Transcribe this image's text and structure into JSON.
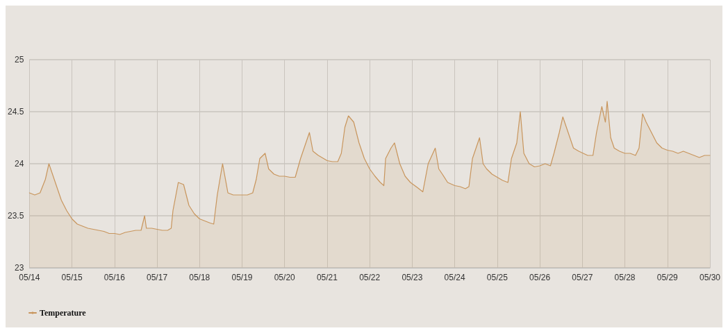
{
  "chart_data": {
    "type": "area",
    "legend": "bottom left",
    "grid": true,
    "marker": "none",
    "line_style": "solid",
    "ylim": [
      23,
      25
    ],
    "yticks": [
      23,
      23.5,
      24,
      24.5,
      25
    ],
    "xlim": [
      "--05-14",
      "--05-30"
    ],
    "xticks": [
      {
        "value": "--05-14",
        "label": "05/14"
      },
      {
        "value": "--05-15",
        "label": "05/15"
      },
      {
        "value": "--05-16",
        "label": "05/16"
      },
      {
        "value": "--05-17",
        "label": "05/17"
      },
      {
        "value": "--05-18",
        "label": "05/18"
      },
      {
        "value": "--05-19",
        "label": "05/19"
      },
      {
        "value": "--05-20",
        "label": "05/20"
      },
      {
        "value": "--05-21",
        "label": "05/21"
      },
      {
        "value": "--05-22",
        "label": "05/22"
      },
      {
        "value": "--05-23",
        "label": "05/23"
      },
      {
        "value": "--05-24",
        "label": "05/24"
      },
      {
        "value": "--05-25",
        "label": "05/25"
      },
      {
        "value": "--05-26",
        "label": "05/26"
      },
      {
        "value": "--05-27",
        "label": "05/27"
      },
      {
        "value": "--05-28",
        "label": "05/28"
      },
      {
        "value": "--05-29",
        "label": "05/29"
      },
      {
        "value": "--05-30",
        "label": "05/30"
      }
    ],
    "x": [
      "--05-14T00:00",
      "--05-14T03:00",
      "--05-14T06:00",
      "--05-14T09:00",
      "--05-14T11:00",
      "--05-14T12:00",
      "--05-14T15:00",
      "--05-14T18:00",
      "--05-14T21:00",
      "--05-15T00:00",
      "--05-15T03:00",
      "--05-15T06:00",
      "--05-15T09:00",
      "--05-15T12:00",
      "--05-15T15:00",
      "--05-15T18:00",
      "--05-15T21:00",
      "--05-16T00:00",
      "--05-16T03:00",
      "--05-16T06:00",
      "--05-16T09:00",
      "--05-16T12:00",
      "--05-16T15:00",
      "--05-16T17:00",
      "--05-16T18:00",
      "--05-16T21:00",
      "--05-17T00:00",
      "--05-17T03:00",
      "--05-17T06:00",
      "--05-17T08:00",
      "--05-17T09:00",
      "--05-17T12:00",
      "--05-17T15:00",
      "--05-17T18:00",
      "--05-17T21:00",
      "--05-18T00:00",
      "--05-18T03:00",
      "--05-18T06:00",
      "--05-18T08:00",
      "--05-18T10:00",
      "--05-18T13:00",
      "--05-18T16:00",
      "--05-18T19:00",
      "--05-18T22:00",
      "--05-19T00:00",
      "--05-19T03:00",
      "--05-19T06:00",
      "--05-19T08:00",
      "--05-19T10:00",
      "--05-19T13:00",
      "--05-19T15:00",
      "--05-19T18:00",
      "--05-19T21:00",
      "--05-20T00:00",
      "--05-20T03:00",
      "--05-20T06:00",
      "--05-20T09:00",
      "--05-20T12:00",
      "--05-20T14:00",
      "--05-20T16:00",
      "--05-20T19:00",
      "--05-20T22:00",
      "--05-21T00:00",
      "--05-21T03:00",
      "--05-21T06:00",
      "--05-21T08:00",
      "--05-21T10:00",
      "--05-21T12:00",
      "--05-21T15:00",
      "--05-21T18:00",
      "--05-21T21:00",
      "--05-22T00:00",
      "--05-22T03:00",
      "--05-22T06:00",
      "--05-22T08:00",
      "--05-22T09:00",
      "--05-22T12:00",
      "--05-22T14:00",
      "--05-22T17:00",
      "--05-22T20:00",
      "--05-22T23:00",
      "--05-23T03:00",
      "--05-23T06:00",
      "--05-23T09:00",
      "--05-23T13:00",
      "--05-23T15:00",
      "--05-23T17:00",
      "--05-23T20:00",
      "--05-24T00:00",
      "--05-24T03:00",
      "--05-24T06:00",
      "--05-24T08:00",
      "--05-24T10:00",
      "--05-24T14:00",
      "--05-24T16:00",
      "--05-24T18:00",
      "--05-24T21:00",
      "--05-25T00:00",
      "--05-25T03:00",
      "--05-25T06:00",
      "--05-25T08:00",
      "--05-25T11:00",
      "--05-25T13:00",
      "--05-25T15:00",
      "--05-25T18:00",
      "--05-25T21:00",
      "--05-26T00:00",
      "--05-26T03:00",
      "--05-26T06:00",
      "--05-26T08:00",
      "--05-26T11:00",
      "--05-26T13:00",
      "--05-26T16:00",
      "--05-26T19:00",
      "--05-26T22:00",
      "--05-27T03:00",
      "--05-27T06:00",
      "--05-27T08:00",
      "--05-27T11:00",
      "--05-27T13:00",
      "--05-27T14:00",
      "--05-27T16:00",
      "--05-27T18:00",
      "--05-27T21:00",
      "--05-28T00:00",
      "--05-28T03:00",
      "--05-28T06:00",
      "--05-28T08:00",
      "--05-28T10:00",
      "--05-28T12:00",
      "--05-28T15:00",
      "--05-28T18:00",
      "--05-28T21:00",
      "--05-29T00:00",
      "--05-29T03:00",
      "--05-29T06:00",
      "--05-29T09:00",
      "--05-29T12:00",
      "--05-29T15:00",
      "--05-29T18:00",
      "--05-29T21:00",
      "--05-30T00:00"
    ],
    "series": [
      {
        "name": "Temperature",
        "color": "#c8955c",
        "values": [
          23.72,
          23.7,
          23.72,
          23.85,
          24.0,
          23.95,
          23.8,
          23.65,
          23.55,
          23.47,
          23.42,
          23.4,
          23.38,
          23.37,
          23.36,
          23.35,
          23.33,
          23.33,
          23.32,
          23.34,
          23.35,
          23.36,
          23.36,
          23.5,
          23.38,
          23.38,
          23.37,
          23.36,
          23.36,
          23.38,
          23.55,
          23.82,
          23.8,
          23.6,
          23.52,
          23.47,
          23.45,
          23.43,
          23.42,
          23.7,
          24.0,
          23.72,
          23.7,
          23.7,
          23.7,
          23.7,
          23.72,
          23.85,
          24.05,
          24.1,
          23.95,
          23.9,
          23.88,
          23.88,
          23.87,
          23.87,
          24.05,
          24.2,
          24.3,
          24.12,
          24.08,
          24.05,
          24.03,
          24.02,
          24.02,
          24.1,
          24.35,
          24.46,
          24.4,
          24.2,
          24.05,
          23.95,
          23.88,
          23.82,
          23.79,
          24.05,
          24.15,
          24.2,
          24.0,
          23.88,
          23.82,
          23.77,
          23.73,
          24.0,
          24.15,
          23.95,
          23.9,
          23.82,
          23.79,
          23.78,
          23.76,
          23.78,
          24.05,
          24.25,
          24.0,
          23.95,
          23.9,
          23.87,
          23.84,
          23.82,
          24.05,
          24.2,
          24.5,
          24.1,
          24.0,
          23.97,
          23.98,
          24.0,
          23.98,
          24.1,
          24.3,
          24.45,
          24.3,
          24.15,
          24.12,
          24.08,
          24.08,
          24.3,
          24.55,
          24.4,
          24.6,
          24.25,
          24.15,
          24.12,
          24.1,
          24.1,
          24.08,
          24.15,
          24.48,
          24.4,
          24.3,
          24.2,
          24.15,
          24.13,
          24.12,
          24.1,
          24.12,
          24.1,
          24.08,
          24.06,
          24.08,
          24.08
        ]
      }
    ]
  }
}
